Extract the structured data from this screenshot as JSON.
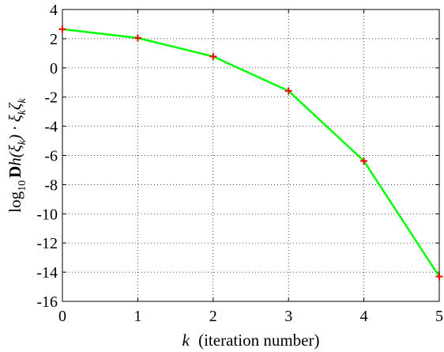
{
  "chart_data": {
    "type": "line",
    "xlabel_var": "k",
    "xlabel_text": "(iteration number)",
    "ylabel": {
      "log": "log",
      "log_sub": "10",
      "bold": "D",
      "rest": "h(ξ",
      "sub1": "k",
      "rest2": ") · ξ",
      "sub2": "k",
      "rest3": "ζ",
      "sub3": "k"
    },
    "xlim": [
      0,
      5
    ],
    "ylim": [
      -16,
      4
    ],
    "xticks": [
      0,
      1,
      2,
      3,
      4,
      5
    ],
    "yticks": [
      4,
      2,
      0,
      -2,
      -4,
      -6,
      -8,
      -10,
      -12,
      -14,
      -16
    ],
    "grid": true,
    "grid_style": "dotted",
    "series": [
      {
        "x": [
          0,
          1,
          2,
          3,
          4,
          5
        ],
        "y": [
          2.65,
          2.05,
          0.78,
          -1.58,
          -6.38,
          -14.3
        ],
        "line_color": "#00ff00",
        "marker": "plus",
        "marker_color": "#ff0000"
      }
    ]
  }
}
